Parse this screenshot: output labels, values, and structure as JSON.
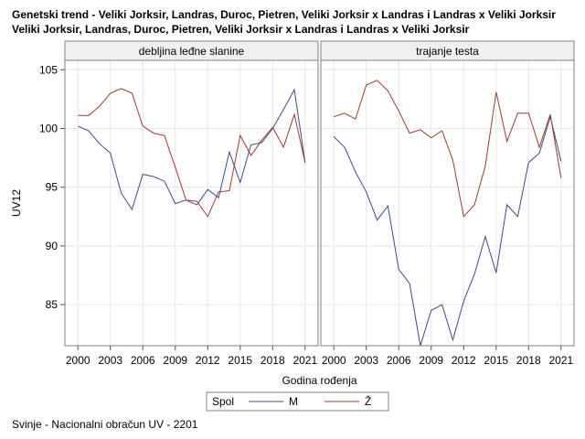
{
  "title_line1": "Genetski trend - Veliki Jorksir, Landras, Duroc, Pietren, Veliki Jorksir x Landras i Landras x Veliki Jorksir",
  "title_line2": "Veliki Jorksir, Landras, Duroc, Pietren, Veliki Jorksir x Landras i Landras x Veliki Jorksir",
  "footnote": "Svinje - Nacionalni obračun UV - 2201",
  "colors": {
    "M": "#3b4b8c",
    "Z": "#9e3a32",
    "grid": "#e6e6e6",
    "frame": "#808080",
    "header_bg": "#f0f0f0"
  },
  "chart_data": {
    "type": "line",
    "xlabel": "Godina rođenja",
    "ylabel": "UV12",
    "ylim": [
      81.5,
      105.8
    ],
    "xlim": [
      1998.8,
      2022.2
    ],
    "yticks": [
      85,
      90,
      95,
      100,
      105
    ],
    "xticks": [
      2000,
      2003,
      2006,
      2009,
      2012,
      2015,
      2018,
      2021
    ],
    "grid": true,
    "legend": {
      "title": "Spol",
      "position": "bottom",
      "entries": [
        "M",
        "Ž"
      ]
    },
    "panels": [
      {
        "label": "debljina leđne slanine",
        "series": [
          {
            "name": "M",
            "x": [
              2000,
              2001,
              2002,
              2003,
              2004,
              2005,
              2006,
              2007,
              2008,
              2009,
              2010,
              2011,
              2012,
              2013,
              2014,
              2015,
              2016,
              2017,
              2018,
              2019,
              2020,
              2021
            ],
            "y": [
              100.2,
              99.8,
              98.7,
              97.9,
              94.5,
              93.1,
              96.1,
              95.9,
              95.5,
              93.6,
              93.9,
              93.5,
              94.8,
              94.1,
              98.0,
              95.4,
              98.6,
              98.8,
              100.0,
              101.6,
              103.3,
              97.1
            ]
          },
          {
            "name": "Ž",
            "x": [
              2000,
              2001,
              2002,
              2003,
              2004,
              2005,
              2006,
              2007,
              2008,
              2009,
              2010,
              2011,
              2012,
              2013,
              2014,
              2015,
              2016,
              2017,
              2018,
              2019,
              2020,
              2021
            ],
            "y": [
              101.1,
              101.1,
              101.9,
              103.0,
              103.4,
              103.0,
              100.2,
              99.6,
              99.4,
              96.7,
              93.9,
              93.8,
              92.5,
              94.6,
              94.7,
              99.4,
              97.7,
              99.0,
              100.1,
              98.4,
              101.2,
              97.1
            ]
          }
        ]
      },
      {
        "label": "trajanje testa",
        "series": [
          {
            "name": "M",
            "x": [
              2000,
              2001,
              2002,
              2003,
              2004,
              2005,
              2006,
              2007,
              2008,
              2009,
              2010,
              2011,
              2012,
              2013,
              2014,
              2015,
              2016,
              2017,
              2018,
              2019,
              2020,
              2021
            ],
            "y": [
              99.3,
              98.4,
              96.3,
              94.6,
              92.2,
              93.4,
              88.0,
              86.8,
              81.5,
              84.5,
              85.0,
              82.0,
              85.3,
              87.6,
              90.8,
              87.7,
              93.5,
              92.5,
              97.1,
              97.9,
              101.0,
              97.2
            ]
          },
          {
            "name": "Ž",
            "x": [
              2000,
              2001,
              2002,
              2003,
              2004,
              2005,
              2006,
              2007,
              2008,
              2009,
              2010,
              2011,
              2012,
              2013,
              2014,
              2015,
              2016,
              2017,
              2018,
              2019,
              2020,
              2021
            ],
            "y": [
              101.0,
              101.3,
              100.8,
              103.7,
              104.1,
              103.2,
              101.5,
              99.6,
              99.9,
              99.2,
              99.8,
              97.3,
              92.5,
              93.5,
              96.8,
              103.1,
              98.9,
              101.3,
              101.3,
              98.4,
              101.2,
              95.8
            ]
          }
        ]
      }
    ]
  }
}
